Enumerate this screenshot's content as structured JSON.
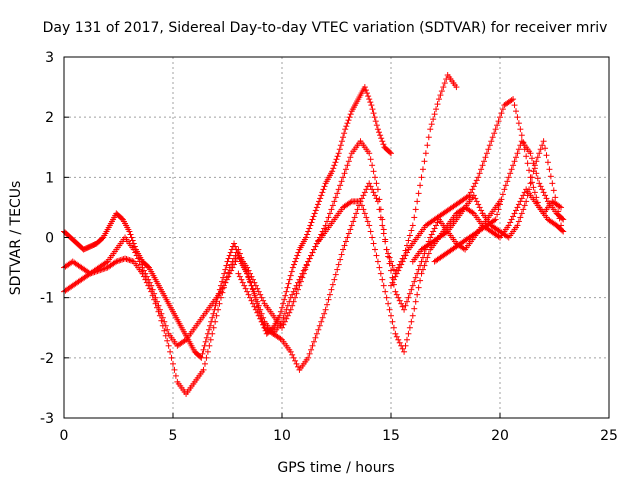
{
  "chart_data": {
    "type": "scatter",
    "title": "Day 131 of 2017, Sidereal Day-to-day VTEC variation (SDTVAR) for receiver mriv",
    "xlabel": "GPS time / hours",
    "ylabel": "SDTVAR / TECUs",
    "xlim": [
      0,
      25
    ],
    "ylim": [
      -3,
      3
    ],
    "xticks": [
      0,
      5,
      10,
      15,
      20,
      25
    ],
    "yticks": [
      -3,
      -2,
      -1,
      0,
      1,
      2,
      3
    ],
    "xtick_labels": [
      "0",
      "5",
      "10",
      "15",
      "20",
      "25"
    ],
    "ytick_labels": [
      "-3",
      "-2",
      "-1",
      "0",
      "1",
      "2",
      "3"
    ],
    "grid": true,
    "marker": "plus",
    "colors": {
      "series": "#ff0000",
      "grid": "#a0a0a0",
      "axis": "#000000",
      "background": "#ffffff"
    },
    "series": [
      {
        "x": [
          0.0,
          0.3,
          0.6,
          0.9,
          1.2,
          1.5,
          1.8,
          2.1,
          2.4,
          2.7,
          3.0,
          3.3,
          3.6,
          3.9,
          4.2,
          4.5,
          4.8,
          5.1,
          5.4,
          5.7,
          6.0,
          6.3,
          6.6,
          6.9,
          7.2,
          7.5,
          7.8,
          8.1,
          8.4,
          8.7,
          9.0,
          9.3,
          9.6,
          9.9,
          10.2,
          10.5,
          10.8,
          11.1,
          11.4,
          11.7,
          12.0,
          12.3,
          12.6,
          12.9,
          13.2,
          13.5,
          13.8,
          14.1,
          14.4,
          14.7,
          15.0
        ],
        "y": [
          0.1,
          0.0,
          -0.1,
          -0.2,
          -0.15,
          -0.1,
          0.0,
          0.2,
          0.4,
          0.3,
          0.1,
          -0.2,
          -0.4,
          -0.5,
          -0.7,
          -0.9,
          -1.1,
          -1.3,
          -1.5,
          -1.7,
          -1.9,
          -2.0,
          -1.6,
          -1.2,
          -0.8,
          -0.4,
          -0.1,
          -0.4,
          -0.6,
          -0.9,
          -1.3,
          -1.6,
          -1.5,
          -1.3,
          -0.9,
          -0.5,
          -0.2,
          0.0,
          0.3,
          0.6,
          0.9,
          1.1,
          1.4,
          1.8,
          2.1,
          2.3,
          2.5,
          2.2,
          1.8,
          1.5,
          1.4
        ]
      },
      {
        "x": [
          0.0,
          0.4,
          0.8,
          1.2,
          1.6,
          2.0,
          2.4,
          2.8,
          3.2,
          3.6,
          4.0,
          4.4,
          4.8,
          5.2,
          5.6,
          6.0,
          6.4,
          6.8,
          7.2,
          7.6,
          8.0,
          8.4,
          8.8,
          9.2,
          9.6,
          10.0,
          10.4,
          10.8,
          11.2,
          11.6,
          12.0,
          12.4,
          12.8,
          13.2,
          13.6,
          14.0,
          14.4,
          14.8,
          15.2,
          15.6,
          16.0,
          16.4,
          16.8,
          17.2,
          17.6,
          18.0
        ],
        "y": [
          -0.5,
          -0.4,
          -0.5,
          -0.6,
          -0.5,
          -0.4,
          -0.2,
          0.0,
          -0.2,
          -0.5,
          -0.8,
          -1.2,
          -1.6,
          -1.8,
          -1.7,
          -1.5,
          -1.3,
          -1.1,
          -0.9,
          -0.6,
          -0.3,
          -0.5,
          -0.8,
          -1.1,
          -1.3,
          -1.5,
          -1.2,
          -0.8,
          -0.4,
          -0.1,
          0.2,
          0.6,
          1.0,
          1.4,
          1.6,
          1.4,
          0.8,
          -0.2,
          -0.6,
          -0.3,
          0.2,
          1.0,
          1.8,
          2.3,
          2.7,
          2.5
        ]
      },
      {
        "x": [
          0.0,
          0.4,
          0.8,
          1.2,
          1.6,
          2.0,
          2.4,
          2.8,
          3.2,
          3.6,
          4.0,
          4.4,
          4.8,
          5.2,
          5.6,
          6.0,
          6.4,
          6.8,
          7.2,
          7.6,
          8.0,
          8.4,
          8.8,
          9.2,
          9.6,
          10.0,
          10.4,
          10.8,
          11.2,
          11.6,
          12.0,
          12.4,
          12.8,
          13.2,
          13.6,
          14.0,
          14.4,
          14.8,
          15.2,
          15.6,
          16.0,
          16.4,
          16.8,
          17.2,
          17.6,
          18.0,
          18.4,
          18.8,
          19.2,
          19.6,
          20.0
        ],
        "y": [
          -0.9,
          -0.8,
          -0.7,
          -0.6,
          -0.55,
          -0.5,
          -0.4,
          -0.35,
          -0.4,
          -0.6,
          -0.9,
          -1.3,
          -1.8,
          -2.4,
          -2.6,
          -2.4,
          -2.2,
          -1.6,
          -1.0,
          -0.5,
          -0.2,
          -0.6,
          -1.0,
          -1.4,
          -1.6,
          -1.7,
          -1.9,
          -2.2,
          -2.0,
          -1.6,
          -1.2,
          -0.7,
          -0.2,
          0.2,
          0.6,
          0.9,
          0.6,
          -0.2,
          -0.9,
          -1.2,
          -0.8,
          -0.4,
          0.0,
          0.3,
          0.1,
          -0.1,
          -0.2,
          0.0,
          0.2,
          0.4,
          0.6
        ]
      },
      {
        "x": [
          8.0,
          8.4,
          8.8,
          9.2,
          9.6,
          10.0,
          10.4,
          10.8,
          11.2,
          11.6,
          12.0,
          12.4,
          12.8,
          13.2,
          13.6,
          14.0,
          14.4,
          14.8,
          15.2,
          15.6,
          16.0,
          16.4,
          16.8,
          17.2,
          17.6,
          18.0,
          18.4,
          18.8,
          19.2,
          19.6,
          20.0,
          20.4,
          20.8,
          21.2,
          21.6,
          22.0,
          22.4,
          22.8
        ],
        "y": [
          -0.6,
          -0.9,
          -1.2,
          -1.5,
          -1.6,
          -1.4,
          -1.0,
          -0.7,
          -0.4,
          -0.1,
          0.1,
          0.3,
          0.5,
          0.6,
          0.6,
          0.2,
          -0.4,
          -1.0,
          -1.6,
          -1.9,
          -1.3,
          -0.6,
          -0.2,
          0.0,
          0.2,
          0.4,
          0.5,
          0.4,
          0.2,
          0.1,
          0.0,
          0.2,
          0.5,
          0.8,
          0.6,
          0.4,
          0.6,
          0.5
        ]
      },
      {
        "x": [
          15.0,
          15.4,
          15.8,
          16.2,
          16.6,
          17.0,
          17.4,
          17.8,
          18.2,
          18.6,
          19.0,
          19.4,
          19.8,
          20.2,
          20.6,
          21.0,
          21.4,
          21.8,
          22.2,
          22.6,
          22.9
        ],
        "y": [
          -0.8,
          -0.5,
          -0.2,
          0.0,
          0.2,
          0.3,
          0.4,
          0.5,
          0.6,
          0.7,
          1.0,
          1.4,
          1.8,
          2.2,
          2.3,
          1.7,
          1.0,
          0.5,
          0.3,
          0.2,
          0.1
        ]
      },
      {
        "x": [
          16.0,
          16.4,
          16.8,
          17.2,
          17.6,
          18.0,
          18.4,
          18.8,
          19.2,
          19.6,
          20.0,
          20.4,
          20.8,
          21.2,
          21.6,
          22.0,
          22.4,
          22.8
        ],
        "y": [
          -0.4,
          -0.2,
          -0.1,
          0.0,
          0.1,
          0.3,
          0.5,
          0.7,
          0.4,
          0.2,
          0.1,
          0.0,
          0.2,
          0.6,
          1.2,
          1.6,
          0.9,
          0.2
        ]
      },
      {
        "x": [
          17.0,
          17.4,
          17.8,
          18.2,
          18.6,
          19.0,
          19.4,
          19.8,
          20.2,
          20.6,
          21.0,
          21.4,
          21.8,
          22.2,
          22.6,
          22.9
        ],
        "y": [
          -0.4,
          -0.3,
          -0.2,
          -0.1,
          0.0,
          0.1,
          0.2,
          0.3,
          0.8,
          1.2,
          1.6,
          1.4,
          0.9,
          0.6,
          0.4,
          0.3
        ]
      }
    ]
  }
}
